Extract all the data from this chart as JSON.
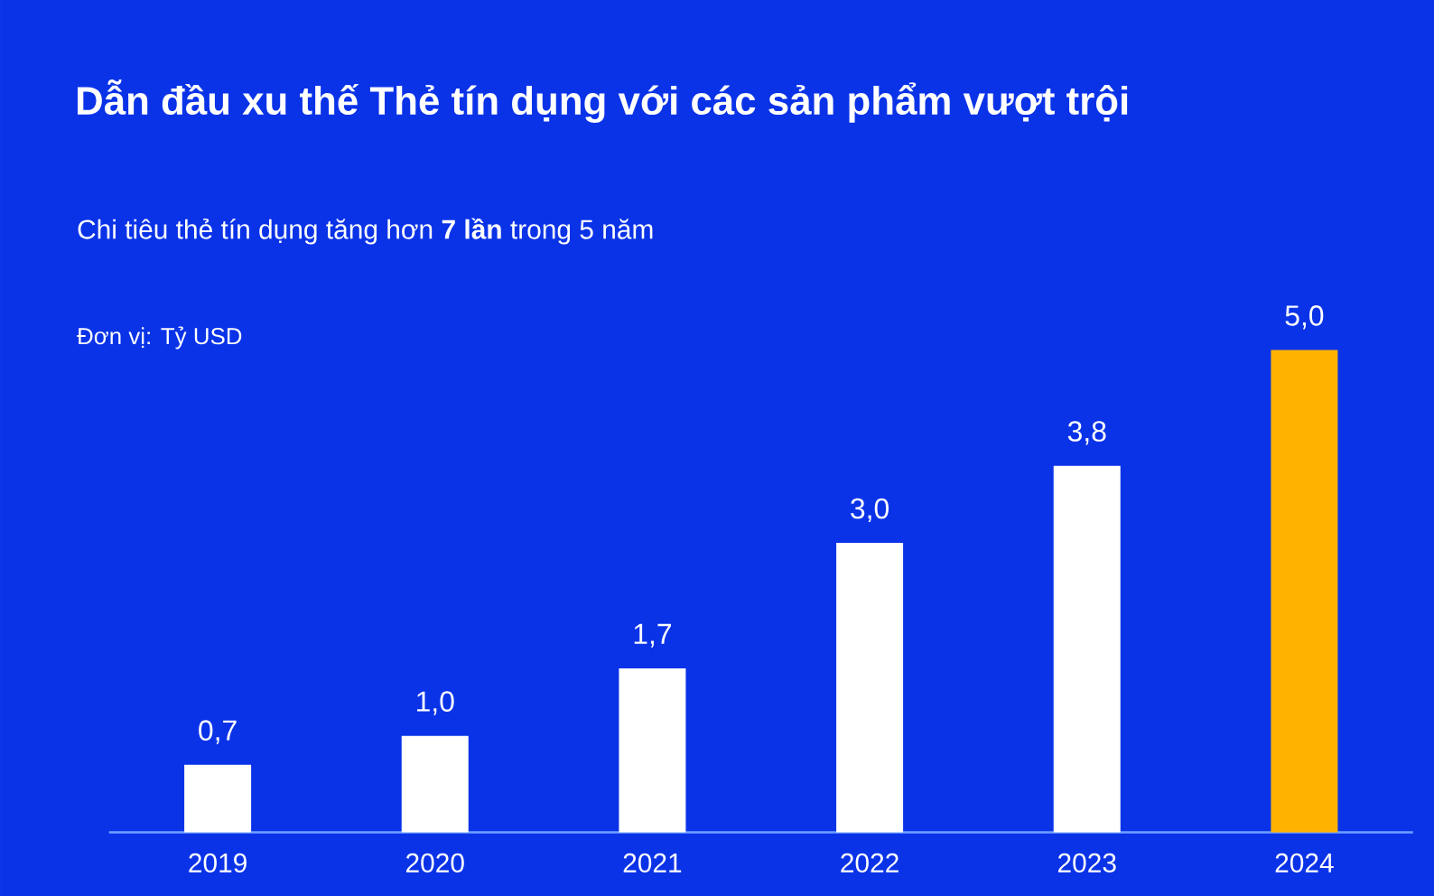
{
  "chart_data": {
    "type": "bar",
    "title": "Dẫn đầu xu thế Thẻ tín dụng với các sản phẩm vượt trội",
    "subtitle": "Chi tiêu thẻ tín dụng tăng hơn **7 lần** trong 5 năm",
    "annotations": [
      "Đơn vị: Tỷ USD"
    ],
    "categories": [
      "2019",
      "2020",
      "2021",
      "2022",
      "2023",
      "2024"
    ],
    "values": [
      0.7,
      1.0,
      1.7,
      3.0,
      3.8,
      5.0
    ],
    "colors": [
      "#ffffff",
      "#ffffff",
      "#ffffff",
      "#ffffff",
      "#ffffff",
      "#ffb300"
    ],
    "value_labels": [
      "0,7",
      "1,0",
      "1,7",
      "3,0",
      "3,8",
      "5,0"
    ]
  }
}
